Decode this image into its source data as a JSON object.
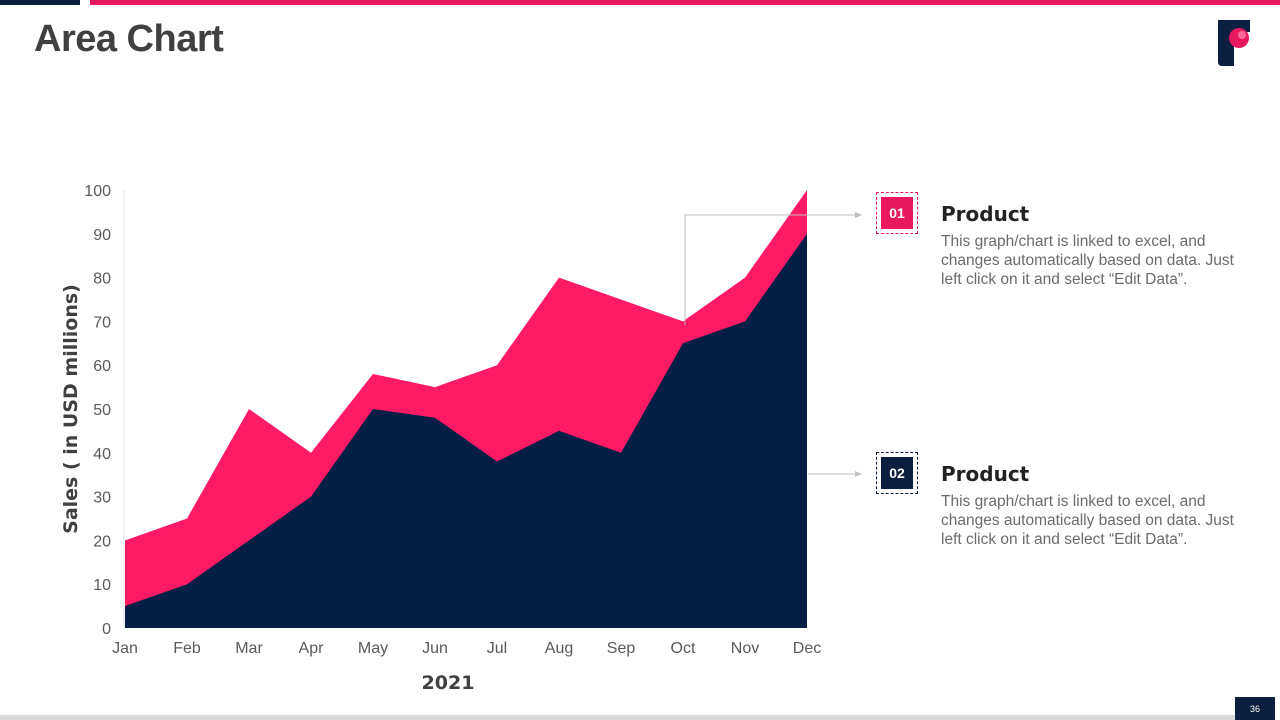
{
  "slide": {
    "title": "Area Chart",
    "page_number": "36"
  },
  "colors": {
    "accent": "#e8185f",
    "navy": "#0c1f40",
    "series1": "#ff1a66",
    "series2": "#051e45"
  },
  "legend": [
    {
      "number": "01",
      "title": "Product",
      "description": "This graph/chart is linked to excel, and changes automatically based on data. Just left click on it and select “Edit Data”."
    },
    {
      "number": "02",
      "title": "Product",
      "description": "This graph/chart is linked to excel, and changes automatically based on data. Just left click on it and select “Edit Data”."
    }
  ],
  "chart_data": {
    "type": "area",
    "title": "",
    "xlabel": "2021",
    "ylabel": "Sales ( in USD millions)",
    "ylim": [
      0,
      100
    ],
    "yticks": [
      0,
      10,
      20,
      30,
      40,
      50,
      60,
      70,
      80,
      90,
      100
    ],
    "categories": [
      "Jan",
      "Feb",
      "Mar",
      "Apr",
      "May",
      "Jun",
      "Jul",
      "Aug",
      "Sep",
      "Oct",
      "Nov",
      "Dec"
    ],
    "series": [
      {
        "name": "Product 01",
        "values": [
          20,
          25,
          50,
          40,
          58,
          55,
          60,
          80,
          75,
          70,
          80,
          100
        ]
      },
      {
        "name": "Product 02",
        "values": [
          5,
          10,
          20,
          30,
          50,
          48,
          38,
          45,
          40,
          65,
          70,
          90
        ]
      }
    ]
  }
}
